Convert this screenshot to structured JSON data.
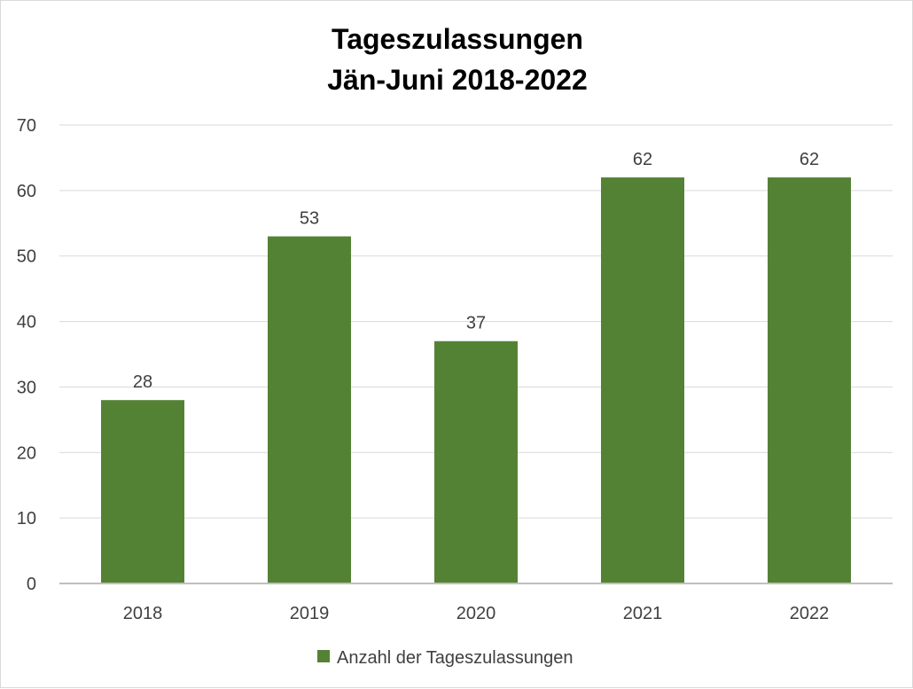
{
  "chart_data": {
    "type": "bar",
    "title_line1": "Tageszulassungen",
    "title_line2": "Jän-Juni 2018-2022",
    "xlabel": "",
    "ylabel": "",
    "categories": [
      "2018",
      "2019",
      "2020",
      "2021",
      "2022"
    ],
    "series": [
      {
        "name": "Anzahl der Tageszulassungen",
        "values": [
          28,
          53,
          37,
          62,
          62
        ],
        "color": "#548235"
      }
    ],
    "ylim": [
      0,
      70
    ],
    "yticks": [
      0,
      10,
      20,
      30,
      40,
      50,
      60,
      70
    ],
    "grid": true,
    "legend_position": "bottom",
    "data_labels": true,
    "gridline_color": "#d9d9d9",
    "axis_color": "#bfbfbf"
  }
}
